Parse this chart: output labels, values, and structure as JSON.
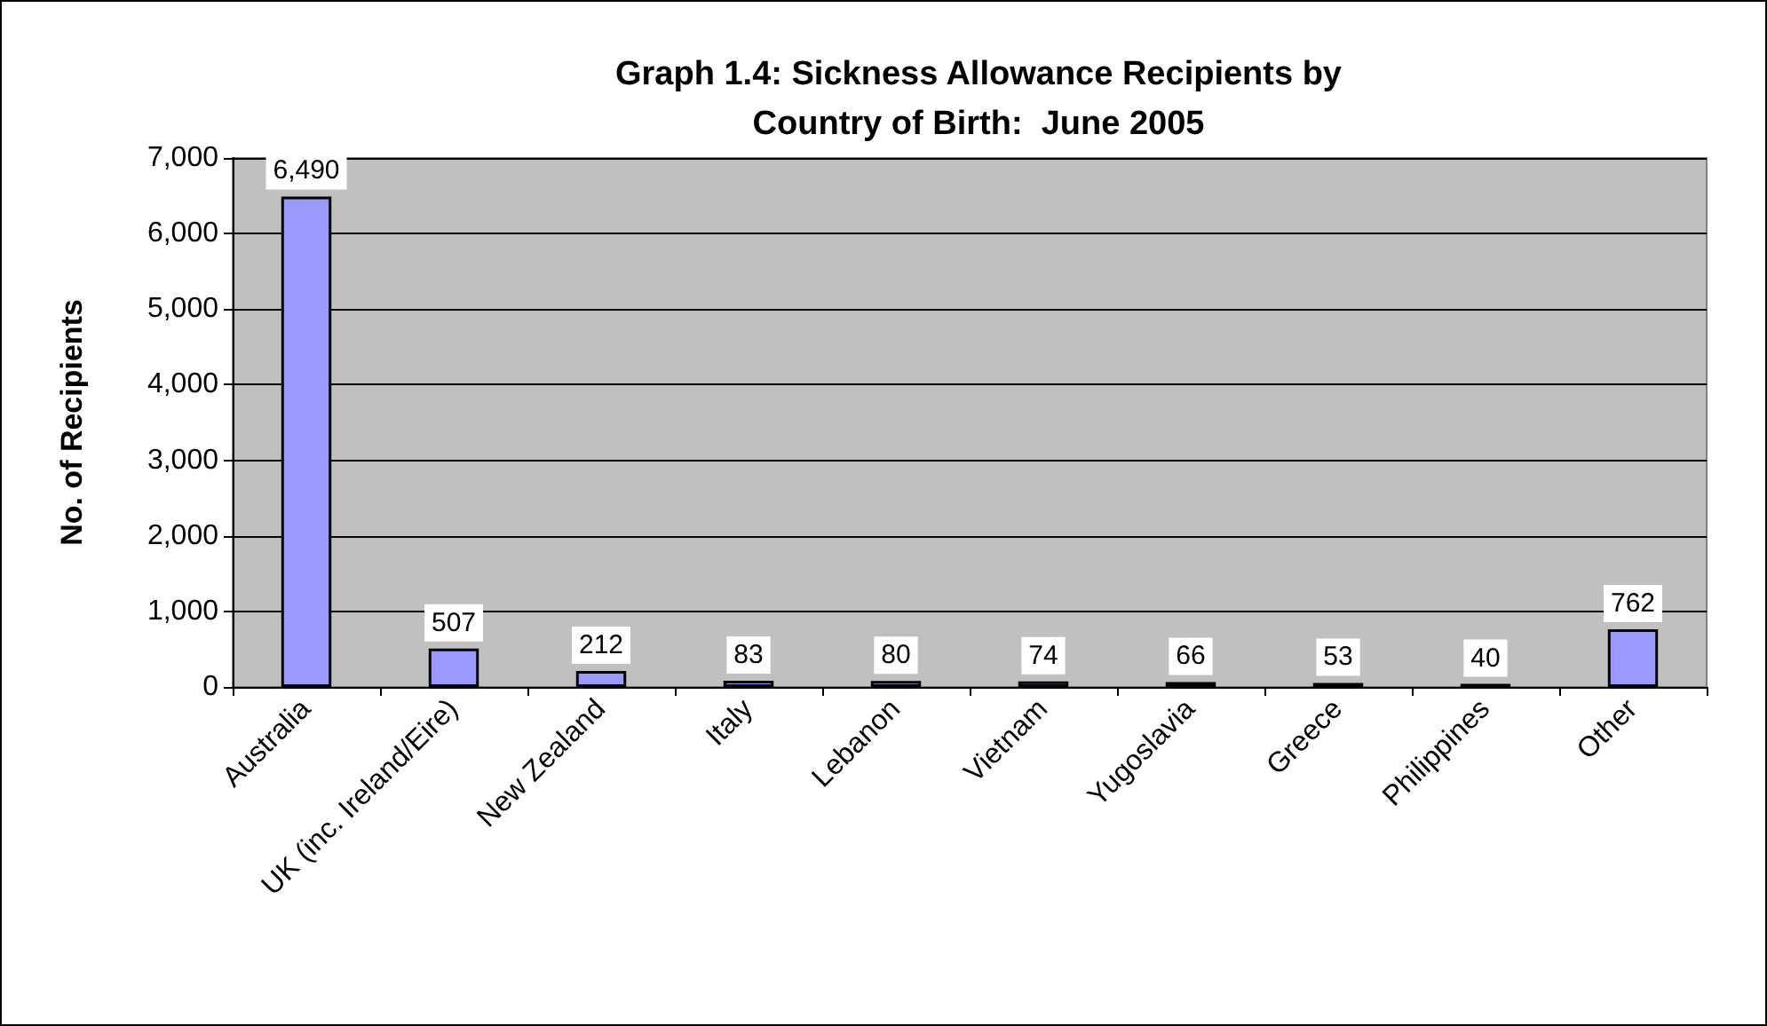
{
  "chart_data": {
    "type": "bar",
    "title": "Graph 1.4: Sickness Allowance Recipients by\nCountry of Birth:  June 2005",
    "ylabel": "No. of Recipients",
    "categories": [
      "Australia",
      "UK (inc. Ireland/Eire)",
      "New Zealand",
      "Italy",
      "Lebanon",
      "Vietnam",
      "Yugoslavia",
      "Greece",
      "Philippines",
      "Other"
    ],
    "values": [
      6490,
      507,
      212,
      83,
      80,
      74,
      66,
      53,
      40,
      762
    ],
    "value_labels": [
      "6,490",
      "507",
      "212",
      "83",
      "80",
      "74",
      "66",
      "53",
      "40",
      "762"
    ],
    "color": "#9999ff",
    "ylim": [
      0,
      7000
    ],
    "yticks": [
      {
        "value": 0,
        "label": "0"
      },
      {
        "value": 1000,
        "label": "1,000"
      },
      {
        "value": 2000,
        "label": "2,000"
      },
      {
        "value": 3000,
        "label": "3,000"
      },
      {
        "value": 4000,
        "label": "4,000"
      },
      {
        "value": 5000,
        "label": "5,000"
      },
      {
        "value": 6000,
        "label": "6,000"
      },
      {
        "value": 7000,
        "label": "7,000"
      }
    ],
    "grid": "y"
  }
}
